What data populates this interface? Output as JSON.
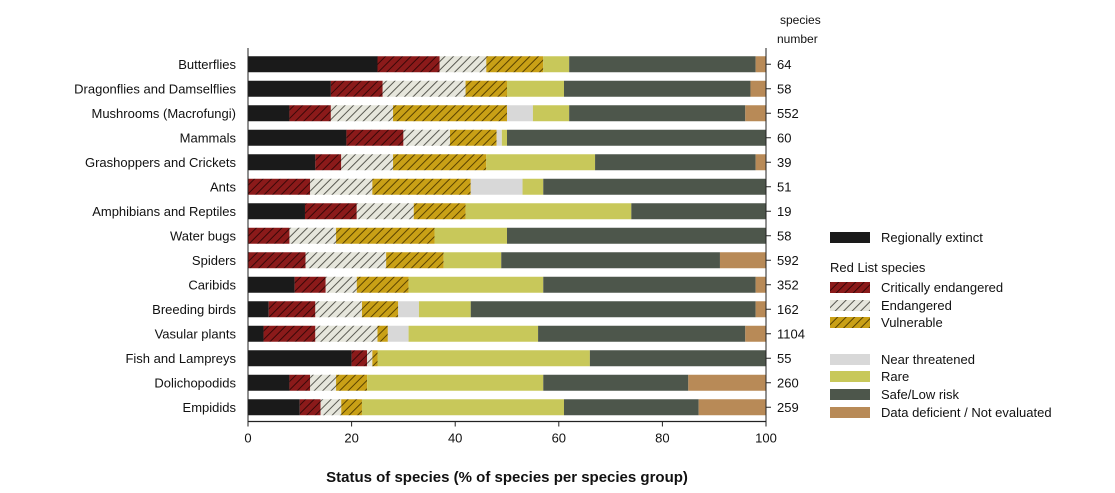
{
  "chart_data": {
    "type": "bar",
    "orientation": "horizontal",
    "stacked": true,
    "xlabel": "Status of species (% of species per species group)",
    "xlim": [
      0,
      100
    ],
    "xticks": [
      "0",
      "20",
      "40",
      "60",
      "80",
      "100"
    ],
    "right_header": [
      "species",
      "number"
    ],
    "legend_position": "right",
    "legend_subheading": "Red List species",
    "categories": [
      "Butterflies",
      "Dragonflies and Damselflies",
      "Mushrooms (Macrofungi)",
      "Mammals",
      "Grashoppers and Crickets",
      "Ants",
      "Amphibians and Reptiles",
      "Water bugs",
      "Spiders",
      "Caribids",
      "Breeding birds",
      "Vasular plants",
      "Fish and Lampreys",
      "Dolichopodids",
      "Empidids"
    ],
    "species_number": [
      "64",
      "58",
      "552",
      "60",
      "39",
      "51",
      "19",
      "58",
      "592",
      "352",
      "162",
      "1104",
      "55",
      "260",
      "259"
    ],
    "series": [
      {
        "name": "Regionally extinct",
        "color": "#1a1a1a",
        "pattern": "solid",
        "values": [
          25,
          16,
          8,
          19,
          13,
          0,
          11,
          0,
          0,
          9,
          4,
          3,
          20,
          8,
          10
        ]
      },
      {
        "name": "Critically endangered",
        "color": "#8b1a1a",
        "pattern": "hatch",
        "values": [
          12,
          10,
          8,
          11,
          5,
          12,
          10,
          8,
          10,
          6,
          9,
          10,
          3,
          4,
          4
        ]
      },
      {
        "name": "Endangered",
        "color": "#b0b0a0",
        "pattern": "hatch",
        "values": [
          9,
          16,
          12,
          9,
          10,
          12,
          11,
          9,
          14,
          6,
          9,
          12,
          1,
          5,
          4
        ]
      },
      {
        "name": "Vulnerable",
        "color": "#b8920f",
        "pattern": "hatch",
        "values": [
          11,
          8,
          22,
          9,
          18,
          19,
          10,
          19,
          10,
          10,
          7,
          2,
          1,
          6,
          4
        ]
      },
      {
        "name": "Near threatened",
        "color": "#d8d8d8",
        "pattern": "solid",
        "values": [
          0,
          0,
          5,
          1,
          0,
          10,
          0,
          0,
          0,
          0,
          4,
          4,
          0,
          0,
          0
        ]
      },
      {
        "name": "Rare",
        "color": "#c8c85a",
        "pattern": "solid",
        "values": [
          5,
          11,
          7,
          1,
          21,
          4,
          32,
          14,
          10,
          26,
          10,
          25,
          41,
          34,
          39
        ]
      },
      {
        "name": "Safe/Low risk",
        "color": "#4d564b",
        "pattern": "solid",
        "values": [
          36,
          36,
          34,
          50,
          31,
          43,
          26,
          50,
          38,
          41,
          55,
          40,
          34,
          28,
          26
        ]
      },
      {
        "name": "Data deficient / Not evaluated",
        "color": "#b88a57",
        "pattern": "solid",
        "values": [
          2,
          3,
          4,
          0,
          2,
          0,
          0,
          0,
          8,
          2,
          2,
          4,
          0,
          15,
          13
        ]
      }
    ]
  }
}
